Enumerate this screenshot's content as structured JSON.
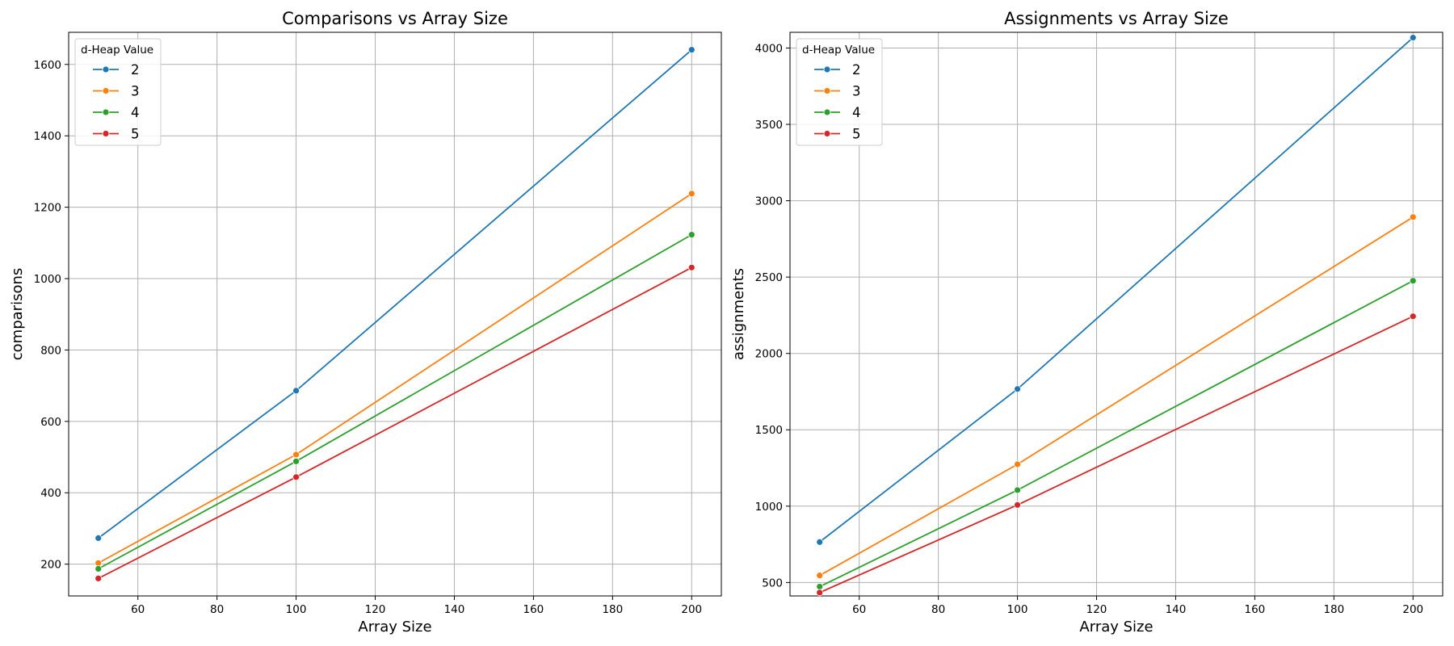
{
  "chart_data": [
    {
      "type": "line",
      "title": "Comparisons vs Array Size",
      "xlabel": "Array Size",
      "ylabel": "comparisons",
      "xlim": [
        42.5,
        207.5
      ],
      "ylim": [
        111,
        1690
      ],
      "xticks": [
        60,
        80,
        100,
        120,
        140,
        160,
        180,
        200
      ],
      "yticks": [
        200,
        400,
        600,
        800,
        1000,
        1200,
        1400,
        1600
      ],
      "grid": true,
      "legend": {
        "title": "d-Heap Value",
        "location": "top-left"
      },
      "x": [
        50,
        100,
        200
      ],
      "series": [
        {
          "name": "2",
          "color": "#1f77b4",
          "values": [
            273,
            686,
            1641
          ]
        },
        {
          "name": "3",
          "color": "#ff7f0e",
          "values": [
            203,
            507,
            1238
          ]
        },
        {
          "name": "4",
          "color": "#2ca02c",
          "values": [
            187,
            488,
            1123
          ]
        },
        {
          "name": "5",
          "color": "#d62728",
          "values": [
            160,
            444,
            1031
          ]
        }
      ]
    },
    {
      "type": "line",
      "title": "Assignments vs Array Size",
      "xlabel": "Array Size",
      "ylabel": "assignments",
      "xlim": [
        42.5,
        207.5
      ],
      "ylim": [
        412,
        4103
      ],
      "xticks": [
        60,
        80,
        100,
        120,
        140,
        160,
        180,
        200
      ],
      "yticks": [
        500,
        1000,
        1500,
        2000,
        2500,
        3000,
        3500,
        4000
      ],
      "grid": true,
      "legend": {
        "title": "d-Heap Value",
        "location": "top-left"
      },
      "x": [
        50,
        100,
        200
      ],
      "series": [
        {
          "name": "2",
          "color": "#1f77b4",
          "values": [
            765,
            1767,
            4068
          ]
        },
        {
          "name": "3",
          "color": "#ff7f0e",
          "values": [
            546,
            1274,
            2893
          ]
        },
        {
          "name": "4",
          "color": "#2ca02c",
          "values": [
            473,
            1105,
            2476
          ]
        },
        {
          "name": "5",
          "color": "#d62728",
          "values": [
            434,
            1008,
            2243
          ]
        }
      ]
    }
  ]
}
